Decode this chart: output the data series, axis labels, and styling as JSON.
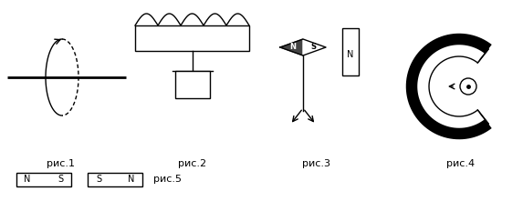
{
  "fig_width": 5.73,
  "fig_height": 2.21,
  "dpi": 100,
  "bg_color": "#ffffff",
  "line_color": "#000000",
  "labels": [
    "рис.1",
    "рис.2",
    "рис.3",
    "рис.4",
    "рис.5"
  ],
  "label_fontsize": 8
}
